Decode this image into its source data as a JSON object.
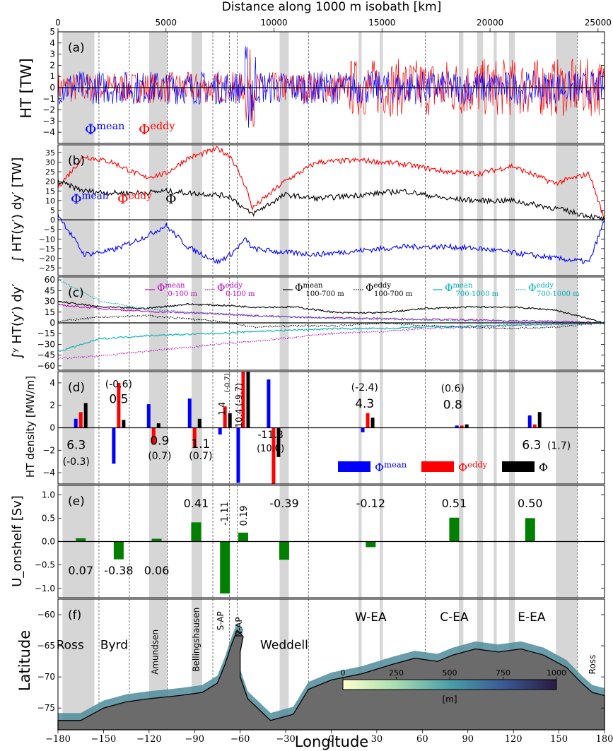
{
  "top_axis": {
    "label": "Distance along 1000 m isobath [km]",
    "ticks": [
      "0",
      "5000",
      "10000",
      "15000",
      "20000",
      "25000"
    ]
  },
  "bottom_axis": {
    "label": "Longitude",
    "ticks": [
      "−180",
      "−150",
      "−120",
      "−90",
      "−60",
      "−30",
      "0",
      "30",
      "60",
      "90",
      "120",
      "150",
      "180"
    ]
  },
  "colors": {
    "mean": "#0000ff",
    "eddy": "#ff0000",
    "total": "#000000",
    "surface": "#c000c0",
    "deep": "#00b0b0",
    "onshelf": "#008000",
    "shade": "#d6d6d6"
  },
  "chart_data": [
    {
      "panel": "(a)",
      "type": "line",
      "ylabel": "HT [TW]",
      "ylim": [
        -5,
        5
      ],
      "yticks": [
        "5",
        "4",
        "3",
        "2",
        "1",
        "0",
        "−1",
        "−2",
        "−3",
        "−4"
      ],
      "legend": [
        {
          "sym": "Φ",
          "sup": "mean",
          "color": "#0000ff"
        },
        {
          "sym": "Φ",
          "sup": "eddy",
          "color": "#ff0000"
        }
      ],
      "series": [
        {
          "name": "Φmean",
          "note": "noisy along-isobath cross-slope heat transport, amplitude ~±2 TW"
        },
        {
          "name": "Φeddy",
          "note": "noisy, larger amplitude in East Antarctica (~±5 TW)"
        }
      ]
    },
    {
      "panel": "(b)",
      "type": "line",
      "ylabel": "∫ HT(y′) dy′ [TW]",
      "ylim": [
        -29,
        39
      ],
      "yticks": [
        "35",
        "30",
        "25",
        "20",
        "15",
        "10",
        "5",
        "0",
        "−5",
        "−10",
        "−15",
        "−20",
        "−25"
      ],
      "legend": [
        {
          "sym": "Φ",
          "sup": "mean",
          "color": "#0000ff"
        },
        {
          "sym": "Φ",
          "sup": "eddy",
          "color": "#ff0000"
        },
        {
          "sym": "Φ",
          "sup": "",
          "color": "#000000"
        }
      ],
      "x_km": [
        0,
        1200,
        2500,
        4000,
        5000,
        6000,
        7400,
        8000,
        8700,
        9000,
        10500,
        12000,
        14000,
        16000,
        18000,
        19500,
        21000,
        23000,
        24600,
        25300
      ],
      "series": [
        {
          "name": "Φeddy",
          "values": [
            17,
            33,
            30,
            22,
            24,
            32,
            37,
            33,
            17,
            6,
            20,
            30,
            31,
            29,
            25,
            24,
            28,
            19,
            24,
            0
          ]
        },
        {
          "name": "Φmean",
          "values": [
            3,
            -18,
            -16,
            -9,
            -3,
            -14,
            -22,
            -18,
            -10,
            -15,
            -17,
            -18,
            -16,
            -14,
            -14,
            -15,
            -17,
            -20,
            -22,
            0
          ]
        },
        {
          "name": "Φ",
          "values": [
            20,
            15,
            14,
            14,
            15,
            14,
            13,
            12,
            5,
            3,
            13,
            11,
            13,
            15,
            11,
            10,
            10,
            6,
            2,
            0
          ]
        }
      ]
    },
    {
      "panel": "(c)",
      "type": "line",
      "ylabel": "∫ʸ HT(y′) dy′",
      "ylim": [
        -66,
        64
      ],
      "yticks": [
        "60",
        "45",
        "30",
        "15",
        "0",
        "−15",
        "−30",
        "−45",
        "−60"
      ],
      "legend": [
        {
          "sym": "Φ",
          "sup": "mean",
          "sub": "0-100 m",
          "color": "#c000c0",
          "style": "solid"
        },
        {
          "sym": "Φ",
          "sup": "eddy",
          "sub": "0-100 m",
          "color": "#c000c0",
          "style": "dotted"
        },
        {
          "sym": "Φ",
          "sup": "mean",
          "sub": "100-700 m",
          "color": "#000000",
          "style": "solid"
        },
        {
          "sym": "Φ",
          "sup": "eddy",
          "sub": "100-700 m",
          "color": "#000000",
          "style": "dotted"
        },
        {
          "sym": "Φ",
          "sup": "mean",
          "sub": "700-1000 m",
          "color": "#00b0b0",
          "style": "solid"
        },
        {
          "sym": "Φ",
          "sup": "eddy",
          "sub": "700-1000 m",
          "color": "#00b0b0",
          "style": "dotted"
        }
      ],
      "x_km": [
        0,
        2000,
        4000,
        6000,
        8000,
        9000,
        11000,
        13000,
        15000,
        17000,
        19000,
        21000,
        23000,
        25300
      ],
      "series": [
        {
          "name": "Φmean 0-100 m",
          "values": [
            25,
            20,
            16,
            14,
            12,
            10,
            8,
            7,
            6,
            5,
            4,
            3,
            2,
            0
          ]
        },
        {
          "name": "Φeddy 0-100 m",
          "values": [
            -50,
            -46,
            -40,
            -34,
            -28,
            -26,
            -20,
            -14,
            -12,
            -8,
            -6,
            -4,
            -2,
            0
          ]
        },
        {
          "name": "Φmean 100-700 m",
          "values": [
            30,
            22,
            20,
            26,
            24,
            22,
            22,
            14,
            14,
            20,
            22,
            22,
            18,
            0
          ]
        },
        {
          "name": "Φeddy 100-700 m",
          "values": [
            2,
            8,
            10,
            6,
            0,
            -6,
            -4,
            -4,
            0,
            -4,
            -6,
            -8,
            -6,
            0
          ]
        },
        {
          "name": "Φmean 700-1000 m",
          "values": [
            -40,
            -22,
            -18,
            -16,
            -14,
            -12,
            -10,
            -8,
            -8,
            -6,
            -5,
            -3,
            -2,
            0
          ]
        },
        {
          "name": "Φeddy 700-1000 m",
          "values": [
            60,
            30,
            20,
            15,
            12,
            10,
            8,
            6,
            5,
            4,
            3,
            2,
            1,
            0
          ]
        }
      ]
    },
    {
      "panel": "(d)",
      "type": "bar",
      "ylabel": "HT density [MW/m]",
      "ylim": [
        -5,
        5
      ],
      "yticks": [
        "4",
        "2",
        "0",
        "−2",
        "−4"
      ],
      "legend": [
        {
          "sym": "Φ",
          "sup": "mean",
          "color": "#0000ff"
        },
        {
          "sym": "Φ",
          "sup": "eddy",
          "color": "#ff0000"
        },
        {
          "sym": "Φ",
          "sup": "",
          "color": "#000000"
        }
      ],
      "regions": [
        {
          "lon": -165,
          "mean": 0.8,
          "eddy": 1.4,
          "total": 2.2
        },
        {
          "lon": -140,
          "mean": -3.2,
          "eddy": 4.0,
          "total": 0.7
        },
        {
          "lon": -117,
          "mean": 2.1,
          "eddy": -1.5,
          "total": 0.4
        },
        {
          "lon": -90,
          "mean": 2.6,
          "eddy": -1.7,
          "total": 0.8
        },
        {
          "lon": -70,
          "mean": -0.6,
          "eddy": 1.9,
          "total": 1.3
        },
        {
          "lon": -58,
          "mean": -4.9,
          "eddy": 5.0,
          "total": 5.0
        },
        {
          "lon": -38,
          "mean": 4.3,
          "eddy": -5.0,
          "total": -2.6
        },
        {
          "lon": 24,
          "mean": -0.4,
          "eddy": 1.3,
          "total": 0.9
        },
        {
          "lon": 86,
          "mean": 0.2,
          "eddy": 0.2,
          "total": 0.3
        },
        {
          "lon": 134,
          "mean": 1.1,
          "eddy": 0.3,
          "total": 1.4
        }
      ],
      "annotations": [
        {
          "text": "6.3",
          "lon": -168,
          "y": -1.9,
          "size": 17
        },
        {
          "text": "(-0.3)",
          "lon": -168,
          "y": -3.3,
          "size": 14
        },
        {
          "text": "(-0.6)",
          "lon": -140,
          "y": 3.6,
          "size": 14
        },
        {
          "text": "0.5",
          "lon": -140,
          "y": 2.2,
          "size": 17
        },
        {
          "text": "0.9",
          "lon": -113,
          "y": -1.5,
          "size": 17
        },
        {
          "text": "(0.7)",
          "lon": -113,
          "y": -2.8,
          "size": 14
        },
        {
          "text": "1.1",
          "lon": -86,
          "y": -1.8,
          "size": 17
        },
        {
          "text": "(0.7)",
          "lon": -86,
          "y": -2.8,
          "size": 14
        },
        {
          "text": "1.4",
          "lon": -70,
          "y": 1.7,
          "size": 12,
          "rotate": true
        },
        {
          "text": "(-0.7)",
          "lon": -67,
          "y": 4.0,
          "size": 10,
          "rotate": true
        },
        {
          "text": "10.4 (-9.7)",
          "lon": -59,
          "y": 2.0,
          "size": 12,
          "rotate": true
        },
        {
          "text": "-11.8",
          "lon": -40,
          "y": -0.9,
          "size": 14
        },
        {
          "text": "(10.0)",
          "lon": -40,
          "y": -2.1,
          "size": 13
        },
        {
          "text": "(-2.4)",
          "lon": 22,
          "y": 3.3,
          "size": 14
        },
        {
          "text": "4.3",
          "lon": 22,
          "y": 1.8,
          "size": 17
        },
        {
          "text": "(0.6)",
          "lon": 80,
          "y": 3.2,
          "size": 14
        },
        {
          "text": "0.8",
          "lon": 80,
          "y": 1.7,
          "size": 17
        },
        {
          "text": "6.3",
          "lon": 132,
          "y": -1.9,
          "size": 17
        },
        {
          "text": "(1.7)",
          "lon": 150,
          "y": -1.9,
          "size": 14
        }
      ]
    },
    {
      "panel": "(e)",
      "type": "bar",
      "ylabel": "U_onshelf [Sv]",
      "ylim": [
        -1.2,
        1.2
      ],
      "yticks": [
        "1.0",
        "0.5",
        "0.0",
        "−0.5",
        "−1.0"
      ],
      "regions": [
        {
          "lon": -165,
          "value": 0.07,
          "label": "0.07"
        },
        {
          "lon": -140,
          "value": -0.38,
          "label": "-0.38"
        },
        {
          "lon": -115,
          "value": 0.06,
          "label": "0.06"
        },
        {
          "lon": -89,
          "value": 0.41,
          "label": "0.41"
        },
        {
          "lon": -70,
          "value": -1.11,
          "label": "-1.11"
        },
        {
          "lon": -58,
          "value": 0.19,
          "label": "0.19"
        },
        {
          "lon": -31,
          "value": -0.39,
          "label": "-0.39"
        },
        {
          "lon": 26,
          "value": -0.12,
          "label": "-0.12"
        },
        {
          "lon": 81,
          "value": 0.51,
          "label": "0.51"
        },
        {
          "lon": 131,
          "value": 0.5,
          "label": "0.50"
        }
      ]
    },
    {
      "panel": "(f)",
      "type": "map",
      "ylabel": "Latitude",
      "ylim": [
        -78.5,
        -57.5
      ],
      "yticks": [
        "−60",
        "−65",
        "−70",
        "−75"
      ],
      "region_labels": [
        {
          "text": "Ross",
          "lon": -172,
          "lat": -65.5
        },
        {
          "text": "Byrd",
          "lon": -143,
          "lat": -65.5
        },
        {
          "text": "Amundsen",
          "lon": -114,
          "lat": -66,
          "rotate": true
        },
        {
          "text": "Bellingshausen",
          "lon": -87,
          "lat": -64,
          "rotate": true
        },
        {
          "text": "S-AP",
          "lon": -71,
          "lat": -61,
          "rotate": true
        },
        {
          "text": "N-AP",
          "lon": -59,
          "lat": -62,
          "rotate": true
        },
        {
          "text": "Weddell",
          "lon": -31,
          "lat": -65.5
        },
        {
          "text": "W-EA",
          "lon": 26,
          "lat": -61
        },
        {
          "text": "C-EA",
          "lon": 81,
          "lat": -61
        },
        {
          "text": "E-EA",
          "lon": 132,
          "lat": -61
        },
        {
          "text": "Ross",
          "lon": 174,
          "lat": -68,
          "rotate": true
        }
      ],
      "colorbar": {
        "ticks": [
          "0",
          "250",
          "500",
          "750",
          "1000"
        ],
        "unit": "[m]",
        "range": [
          0,
          1000
        ]
      }
    }
  ],
  "shaded_lon_bands": [
    [
      -177,
      -156
    ],
    [
      -120,
      -108
    ],
    [
      -92,
      -85
    ],
    [
      -34,
      -28
    ],
    [
      18,
      20
    ],
    [
      32,
      34
    ],
    [
      84,
      87
    ],
    [
      96,
      100
    ],
    [
      107,
      109
    ],
    [
      117,
      121
    ],
    [
      148,
      162
    ]
  ],
  "separators_lon": [
    -153,
    -133,
    -108,
    -78,
    -67,
    -62,
    -15,
    62,
    162
  ]
}
